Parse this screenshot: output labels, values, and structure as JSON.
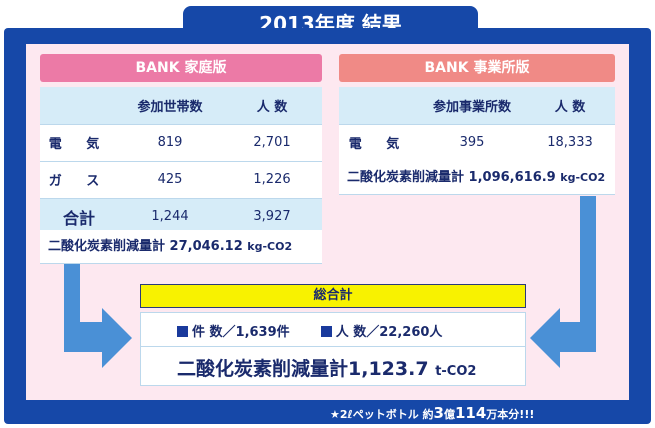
{
  "title": "2013年度 結果",
  "home": {
    "header": "BANK 家庭版",
    "columns": [
      "参加世帯数",
      "人 数"
    ],
    "rows": [
      {
        "label": "電 気",
        "a": "819",
        "b": "2,701"
      },
      {
        "label": "ガ ス",
        "a": "425",
        "b": "1,226"
      },
      {
        "label": "合計",
        "a": "1,244",
        "b": "3,927"
      }
    ],
    "co2_label": "二酸化炭素削減量計",
    "co2_value": "27,046.12",
    "co2_unit": "kg-CO2"
  },
  "business": {
    "header": "BANK 事業所版",
    "columns": [
      "参加事業所数",
      "人 数"
    ],
    "rows": [
      {
        "label": "電 気",
        "a": "395",
        "b": "18,333"
      }
    ],
    "co2_label": "二酸化炭素削減量計",
    "co2_value": "1,096,616.9",
    "co2_unit": "kg-CO2"
  },
  "total": {
    "header": "総合計",
    "count_label": "件 数／1,639件",
    "people_label": "人 数／22,260人",
    "co2_label": "二酸化炭素削減量計",
    "co2_value": "1,123.7",
    "co2_unit": "t-CO2"
  },
  "footer": {
    "prefix": "★2ℓペットボトル 約",
    "n1": "3",
    "mid": "億",
    "n2": "114",
    "suffix": "万本分!!!"
  },
  "colors": {
    "frame": "#1648a8",
    "panel": "#fde8f0",
    "home_header": "#ec7aa6",
    "business_header": "#f08a86",
    "cell_blue": "#d6ecf8",
    "total_header": "#f8f200",
    "arrow": "#4a90d6"
  }
}
